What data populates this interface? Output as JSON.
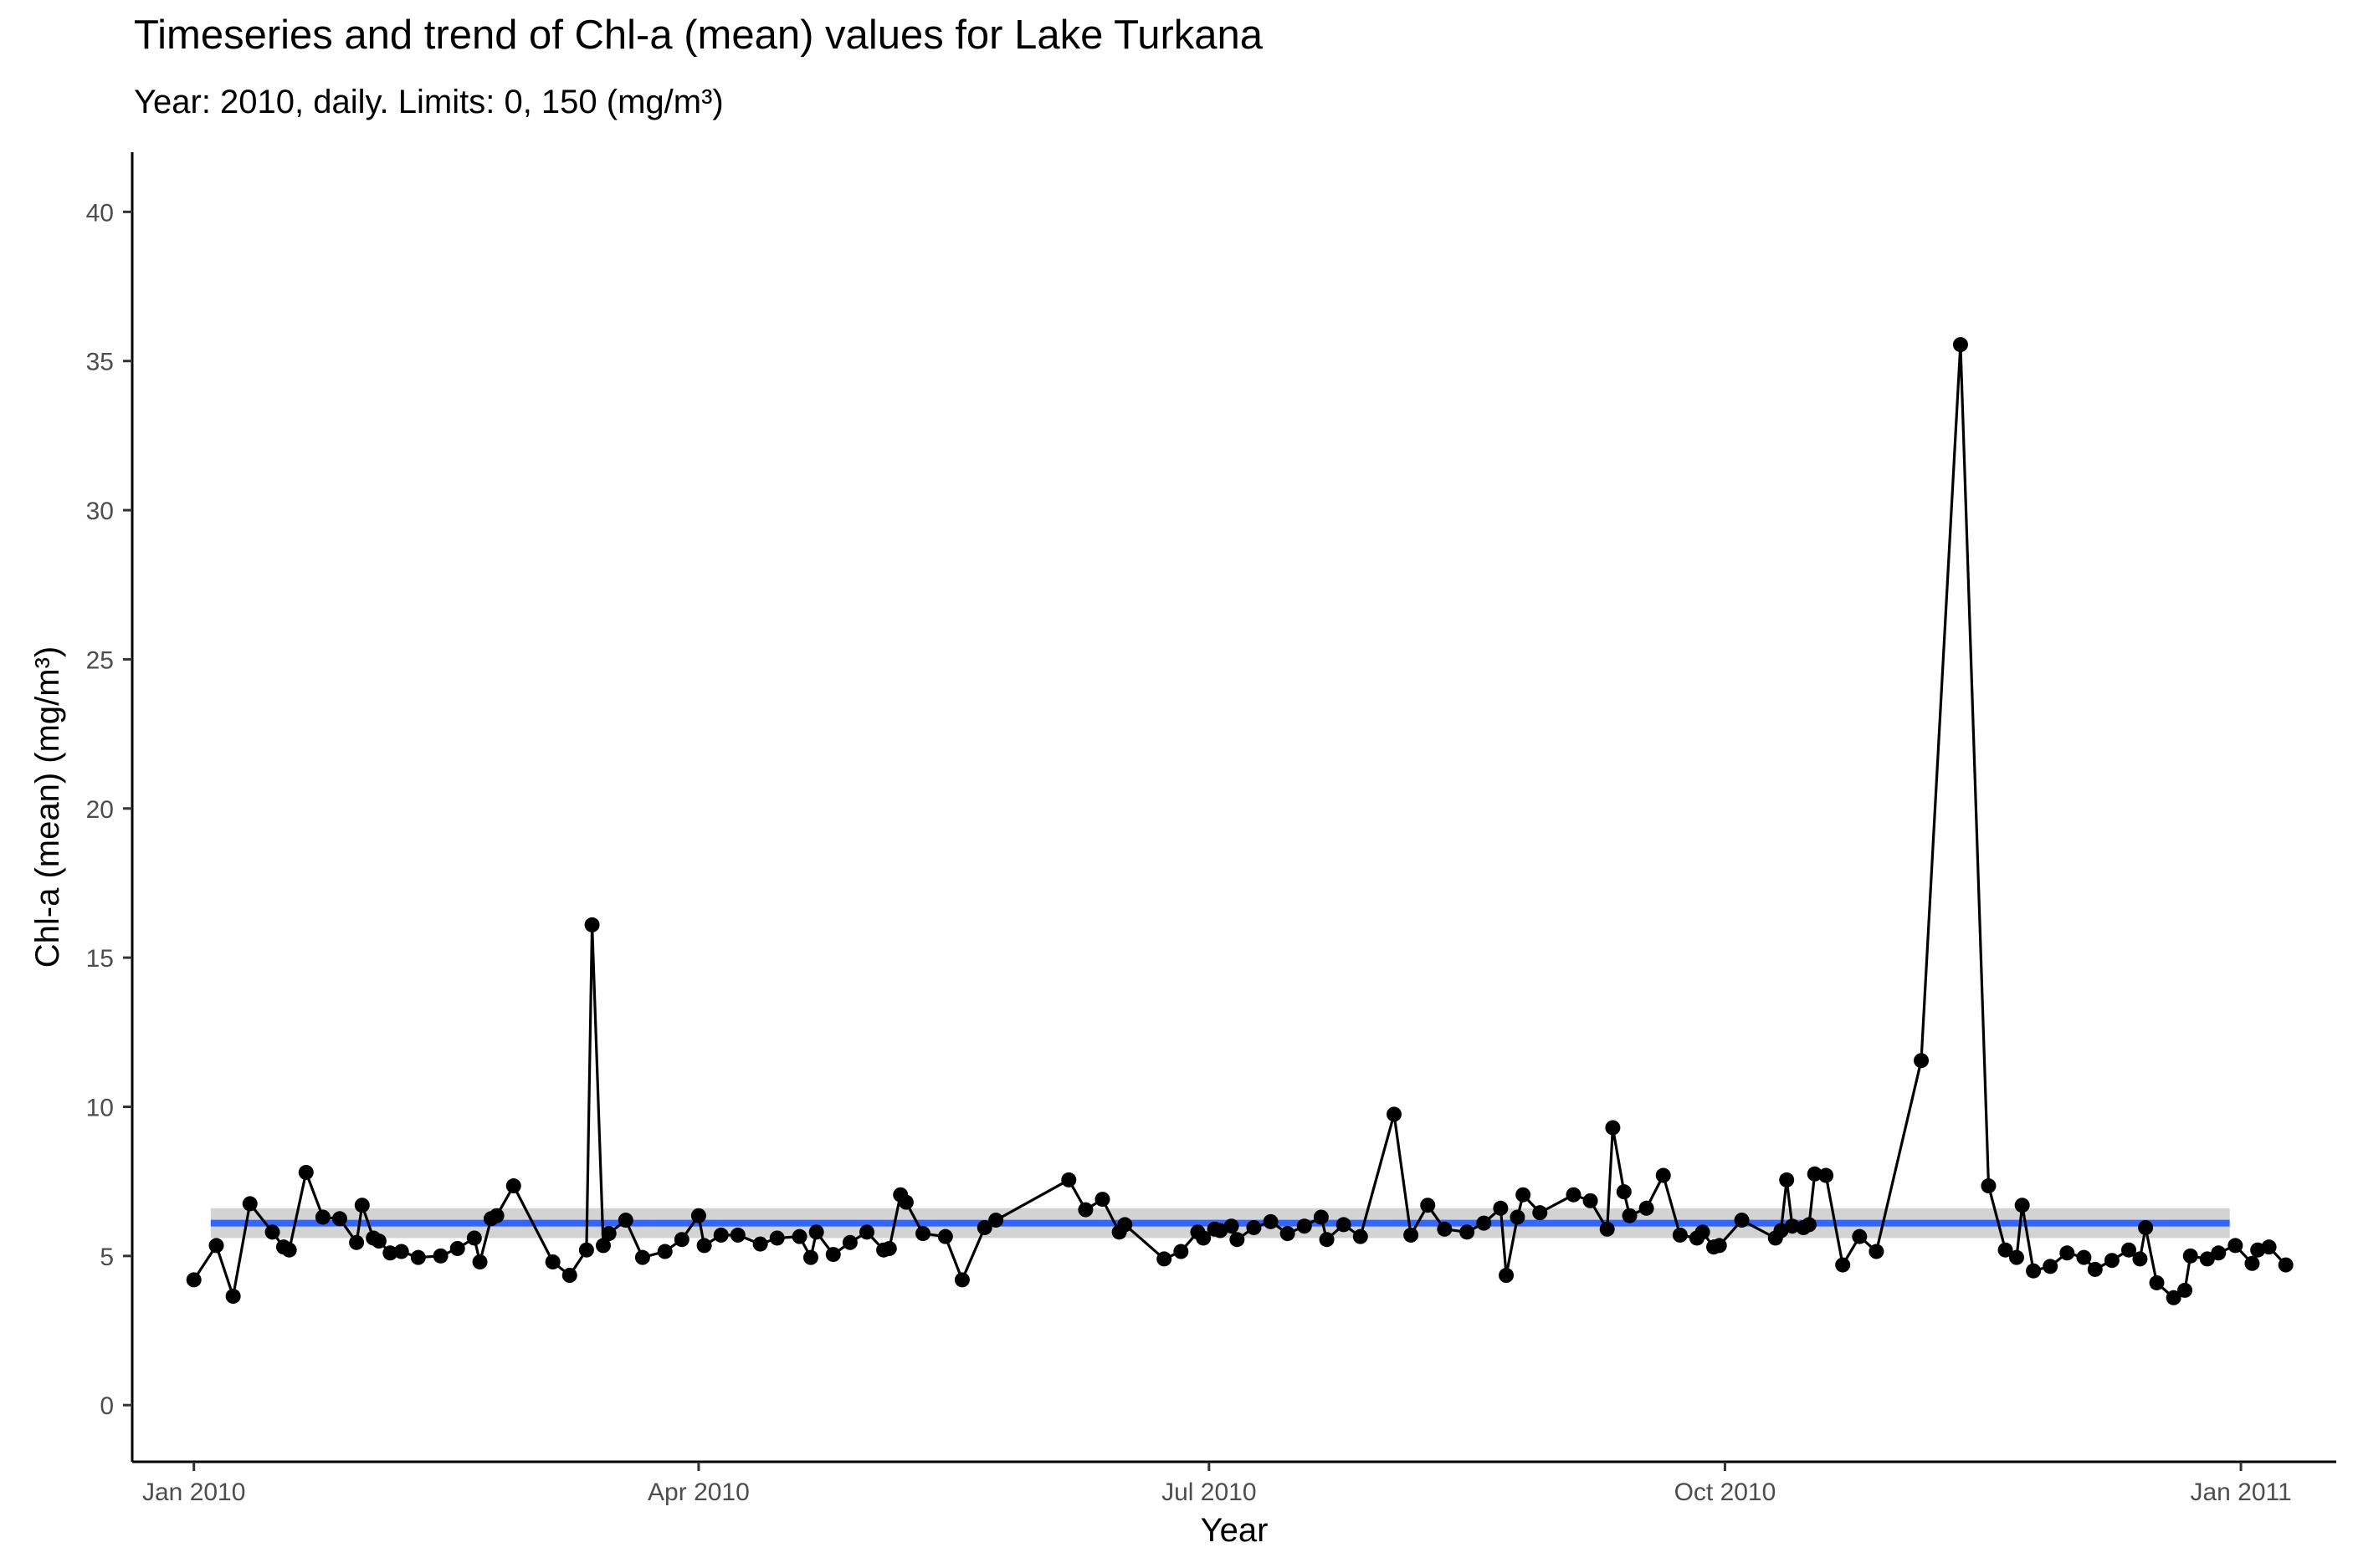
{
  "chart_data": {
    "type": "line",
    "title": "Timeseries and trend of Chl-a (mean) values for Lake Turkana",
    "subtitle": "Year: 2010, daily. Limits: 0, 150 (mg/m³)",
    "xlabel": "Year",
    "ylabel": "Chl-a (mean) (mg/m³)",
    "xlim": [
      "2009-12-21",
      "2011-01-18"
    ],
    "ylim": [
      -1.9,
      42
    ],
    "x_ticks": [
      {
        "date": "2010-01-01",
        "label": "Jan 2010"
      },
      {
        "date": "2010-04-01",
        "label": "Apr 2010"
      },
      {
        "date": "2010-07-01",
        "label": "Jul 2010"
      },
      {
        "date": "2010-10-01",
        "label": "Oct 2010"
      },
      {
        "date": "2011-01-01",
        "label": "Jan 2011"
      }
    ],
    "y_ticks": [
      0,
      5,
      10,
      15,
      20,
      25,
      30,
      35,
      40
    ],
    "grid": false,
    "colors": {
      "series": "#000000",
      "trend": "#3366ff",
      "ci_band": "#d3d3d3"
    },
    "trend": {
      "type": "linear",
      "start": [
        "2010-01-04",
        6.1
      ],
      "end": [
        "2010-12-30",
        6.1
      ],
      "ci": [
        5.6,
        6.6
      ]
    },
    "series": [
      {
        "points": [
          [
            "2010-01-01",
            4.2
          ],
          [
            "2010-01-05",
            5.35
          ],
          [
            "2010-01-08",
            3.65
          ],
          [
            "2010-01-11",
            6.75
          ],
          [
            "2010-01-15",
            5.8
          ],
          [
            "2010-01-17",
            5.3
          ],
          [
            "2010-01-18",
            5.2
          ],
          [
            "2010-01-21",
            7.8
          ],
          [
            "2010-01-24",
            6.3
          ],
          [
            "2010-01-27",
            6.25
          ],
          [
            "2010-01-30",
            5.45
          ],
          [
            "2010-01-31",
            6.7
          ],
          [
            "2010-02-02",
            5.6
          ],
          [
            "2010-02-03",
            5.5
          ],
          [
            "2010-02-05",
            5.1
          ],
          [
            "2010-02-07",
            5.15
          ],
          [
            "2010-02-10",
            4.95
          ],
          [
            "2010-02-14",
            5.0
          ],
          [
            "2010-02-17",
            5.25
          ],
          [
            "2010-02-20",
            5.6
          ],
          [
            "2010-02-21",
            4.8
          ],
          [
            "2010-02-23",
            6.25
          ],
          [
            "2010-02-24",
            6.35
          ],
          [
            "2010-02-27",
            7.35
          ],
          [
            "2010-03-06",
            4.8
          ],
          [
            "2010-03-09",
            4.35
          ],
          [
            "2010-03-12",
            5.2
          ],
          [
            "2010-03-13",
            16.1
          ],
          [
            "2010-03-15",
            5.35
          ],
          [
            "2010-03-16",
            5.75
          ],
          [
            "2010-03-19",
            6.2
          ],
          [
            "2010-03-22",
            4.95
          ],
          [
            "2010-03-26",
            5.15
          ],
          [
            "2010-03-29",
            5.55
          ],
          [
            "2010-04-01",
            6.35
          ],
          [
            "2010-04-02",
            5.35
          ],
          [
            "2010-04-05",
            5.7
          ],
          [
            "2010-04-08",
            5.7
          ],
          [
            "2010-04-12",
            5.4
          ],
          [
            "2010-04-15",
            5.6
          ],
          [
            "2010-04-19",
            5.65
          ],
          [
            "2010-04-21",
            4.95
          ],
          [
            "2010-04-22",
            5.8
          ],
          [
            "2010-04-25",
            5.05
          ],
          [
            "2010-04-28",
            5.45
          ],
          [
            "2010-05-01",
            5.8
          ],
          [
            "2010-05-04",
            5.2
          ],
          [
            "2010-05-05",
            5.25
          ],
          [
            "2010-05-07",
            7.05
          ],
          [
            "2010-05-08",
            6.8
          ],
          [
            "2010-05-11",
            5.75
          ],
          [
            "2010-05-15",
            5.65
          ],
          [
            "2010-05-18",
            4.2
          ],
          [
            "2010-05-22",
            5.95
          ],
          [
            "2010-05-24",
            6.2
          ],
          [
            "2010-06-06",
            7.55
          ],
          [
            "2010-06-09",
            6.55
          ],
          [
            "2010-06-12",
            6.9
          ],
          [
            "2010-06-15",
            5.8
          ],
          [
            "2010-06-16",
            6.05
          ],
          [
            "2010-06-23",
            4.9
          ],
          [
            "2010-06-26",
            5.15
          ],
          [
            "2010-06-29",
            5.8
          ],
          [
            "2010-06-30",
            5.6
          ],
          [
            "2010-07-02",
            5.9
          ],
          [
            "2010-07-03",
            5.85
          ],
          [
            "2010-07-05",
            6.0
          ],
          [
            "2010-07-06",
            5.55
          ],
          [
            "2010-07-09",
            5.95
          ],
          [
            "2010-07-12",
            6.15
          ],
          [
            "2010-07-15",
            5.75
          ],
          [
            "2010-07-18",
            6.0
          ],
          [
            "2010-07-21",
            6.3
          ],
          [
            "2010-07-22",
            5.55
          ],
          [
            "2010-07-25",
            6.05
          ],
          [
            "2010-07-28",
            5.65
          ],
          [
            "2010-08-03",
            9.75
          ],
          [
            "2010-08-06",
            5.7
          ],
          [
            "2010-08-09",
            6.7
          ],
          [
            "2010-08-12",
            5.9
          ],
          [
            "2010-08-16",
            5.8
          ],
          [
            "2010-08-19",
            6.1
          ],
          [
            "2010-08-22",
            6.6
          ],
          [
            "2010-08-23",
            4.35
          ],
          [
            "2010-08-25",
            6.3
          ],
          [
            "2010-08-26",
            7.05
          ],
          [
            "2010-08-29",
            6.45
          ],
          [
            "2010-09-04",
            7.05
          ],
          [
            "2010-09-07",
            6.85
          ],
          [
            "2010-09-10",
            5.9
          ],
          [
            "2010-09-11",
            9.3
          ],
          [
            "2010-09-13",
            7.15
          ],
          [
            "2010-09-14",
            6.35
          ],
          [
            "2010-09-17",
            6.6
          ],
          [
            "2010-09-20",
            7.7
          ],
          [
            "2010-09-23",
            5.7
          ],
          [
            "2010-09-26",
            5.6
          ],
          [
            "2010-09-27",
            5.8
          ],
          [
            "2010-09-29",
            5.3
          ],
          [
            "2010-09-30",
            5.35
          ],
          [
            "2010-10-04",
            6.2
          ],
          [
            "2010-10-10",
            5.6
          ],
          [
            "2010-10-11",
            5.85
          ],
          [
            "2010-10-12",
            7.55
          ],
          [
            "2010-10-13",
            6.0
          ],
          [
            "2010-10-15",
            5.95
          ],
          [
            "2010-10-16",
            6.05
          ],
          [
            "2010-10-17",
            7.75
          ],
          [
            "2010-10-19",
            7.7
          ],
          [
            "2010-10-22",
            4.7
          ],
          [
            "2010-10-25",
            5.65
          ],
          [
            "2010-10-28",
            5.15
          ],
          [
            "2010-11-05",
            11.55
          ],
          [
            "2010-11-12",
            35.55
          ],
          [
            "2010-11-17",
            7.35
          ],
          [
            "2010-11-20",
            5.2
          ],
          [
            "2010-11-22",
            4.95
          ],
          [
            "2010-11-23",
            6.7
          ],
          [
            "2010-11-25",
            4.5
          ],
          [
            "2010-11-28",
            4.65
          ],
          [
            "2010-12-01",
            5.1
          ],
          [
            "2010-12-04",
            4.95
          ],
          [
            "2010-12-06",
            4.55
          ],
          [
            "2010-12-09",
            4.85
          ],
          [
            "2010-12-12",
            5.2
          ],
          [
            "2010-12-14",
            4.9
          ],
          [
            "2010-12-15",
            5.95
          ],
          [
            "2010-12-17",
            4.1
          ],
          [
            "2010-12-20",
            3.6
          ],
          [
            "2010-12-22",
            3.85
          ],
          [
            "2010-12-23",
            5.0
          ],
          [
            "2010-12-26",
            4.9
          ],
          [
            "2010-12-28",
            5.1
          ],
          [
            "2010-12-31",
            5.35
          ],
          [
            "2011-01-03",
            4.75
          ],
          [
            "2011-01-04",
            5.2
          ],
          [
            "2011-01-06",
            5.3
          ],
          [
            "2011-01-09",
            4.7
          ]
        ]
      }
    ]
  }
}
